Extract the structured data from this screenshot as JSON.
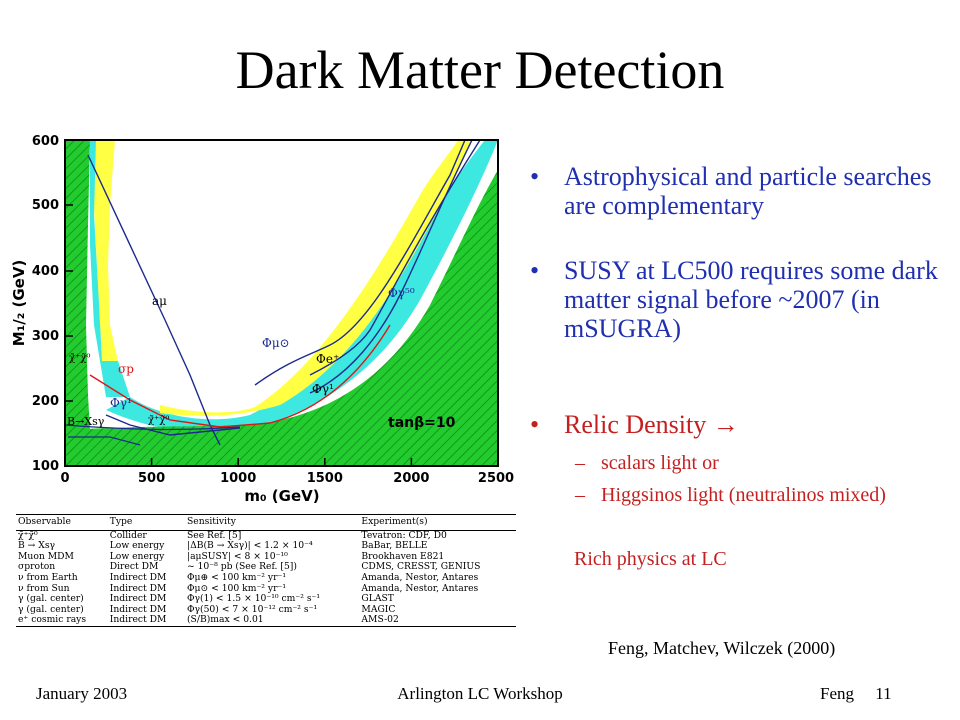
{
  "title": "Dark Matter Detection",
  "plot": {
    "x_axis_label": "m₀ (GeV)",
    "y_axis_label": "M₁/₂ (GeV)",
    "x_ticks": [
      "0",
      "500",
      "1000",
      "1500",
      "2000",
      "2500"
    ],
    "y_ticks": [
      "100",
      "200",
      "300",
      "400",
      "500",
      "600"
    ],
    "labels": {
      "a_mu": "aμ",
      "sigma_p": "σp",
      "phi_gamma1_left": "Φγ¹",
      "phi_mu_sun": "Φμ⊙",
      "phi_e": "Φe⁺",
      "phi_gamma1_right": "Φγ¹",
      "phi_gamma50": "Φγ⁵⁰",
      "chi_chi0_upper": "χ̃⁺χ̃⁰",
      "chi_chi0_lower": "χ̃⁺χ̃⁰",
      "b_xs_gamma": "B→Xsγ",
      "tan_beta": "tanβ=10"
    },
    "colors": {
      "green": "#22cc2e",
      "cyan": "#3de8e0",
      "yellow": "#ffff44",
      "navy": "#1c2a90",
      "red": "#e01515"
    }
  },
  "table": {
    "headers": [
      "Observable",
      "Type",
      "Sensitivity",
      "Experiment(s)"
    ],
    "rows": [
      [
        "χ̃⁺χ̃⁰",
        "Collider",
        "See Ref. [5]",
        "Tevatron: CDF, D0"
      ],
      [
        "B → Xsγ",
        "Low energy",
        "|ΔB(B → Xsγ)| < 1.2 × 10⁻⁴",
        "BaBar, BELLE"
      ],
      [
        "Muon MDM",
        "Low energy",
        "|aμSUSY| < 8 × 10⁻¹⁰",
        "Brookhaven E821"
      ],
      [
        "σproton",
        "Direct DM",
        "~ 10⁻⁸ pb (See Ref. [5])",
        "CDMS, CRESST, GENIUS"
      ],
      [
        "ν from Earth",
        "Indirect DM",
        "Φμ⊕ < 100 km⁻² yr⁻¹",
        "Amanda, Nestor, Antares"
      ],
      [
        "ν from Sun",
        "Indirect DM",
        "Φμ⊙ < 100 km⁻² yr⁻¹",
        "Amanda, Nestor, Antares"
      ],
      [
        "γ (gal. center)",
        "Indirect DM",
        "Φγ(1) < 1.5 × 10⁻¹⁰ cm⁻² s⁻¹",
        "GLAST"
      ],
      [
        "γ (gal. center)",
        "Indirect DM",
        "Φγ(50) < 7 × 10⁻¹² cm⁻² s⁻¹",
        "MAGIC"
      ],
      [
        "e⁺ cosmic rays",
        "Indirect DM",
        "(S/B)max < 0.01",
        "AMS-02"
      ]
    ]
  },
  "bullets": [
    {
      "text": "Astrophysical and particle searches are complementary"
    },
    {
      "text": "SUSY at LC500 requires some dark matter signal before ~2007 (in mSUGRA)"
    },
    {
      "text": "Relic Density  →"
    }
  ],
  "sub_bullets": [
    "scalars light or",
    "Higgsinos light (neutralinos mixed)"
  ],
  "rich_physics": "Rich physics at LC",
  "bullet_glyph": "•",
  "dash_glyph": "–",
  "credit": "Feng, Matchev, Wilczek (2000)",
  "footer": {
    "left": "January 2003",
    "center": "Arlington LC Workshop",
    "right": "Feng     11"
  }
}
